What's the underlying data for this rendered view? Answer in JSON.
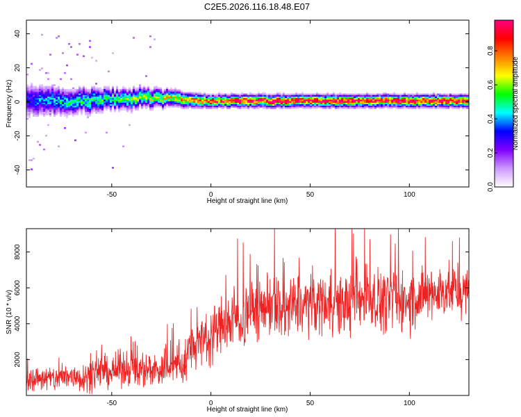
{
  "title": "C2E5.2026.116.18.48.E07",
  "colorbar": {
    "label": "Normalized spectral amplitude",
    "ticks": [
      {
        "value": 0.0,
        "label": "0.0"
      },
      {
        "value": 0.2,
        "label": "0.2"
      },
      {
        "value": 0.4,
        "label": "0.4"
      },
      {
        "value": 0.6,
        "label": "0.6"
      },
      {
        "value": 0.8,
        "label": "0.8"
      }
    ],
    "range": [
      0,
      0.98
    ],
    "colors": [
      "#ffffff",
      "#cc99ff",
      "#8000ff",
      "#0000ff",
      "#00ffff",
      "#00ff00",
      "#ffff00",
      "#ff8000",
      "#ff0000",
      "#ff0080"
    ]
  },
  "chart_data": [
    {
      "type": "heatmap",
      "title": "C2E5.2026.116.18.48.E07",
      "xlabel": "Height of straight line (km)",
      "ylabel": "Frequency (Hz)",
      "xlim": [
        -93,
        130
      ],
      "ylim": [
        -50,
        48
      ],
      "xticks": [
        {
          "value": -50,
          "label": "-50"
        },
        {
          "value": 0,
          "label": "0"
        },
        {
          "value": 50,
          "label": "50"
        },
        {
          "value": 100,
          "label": "100"
        }
      ],
      "yticks": [
        {
          "value": -40,
          "label": "-40"
        },
        {
          "value": -20,
          "label": "-20"
        },
        {
          "value": 0,
          "label": "0"
        },
        {
          "value": 20,
          "label": "20"
        },
        {
          "value": 40,
          "label": "40"
        }
      ],
      "band": {
        "x": [
          -93,
          -80,
          -70,
          -60,
          -50,
          -40,
          -30,
          -20,
          -10,
          0,
          10,
          20,
          30,
          40,
          50,
          60,
          70,
          80,
          90,
          100,
          110,
          120,
          130
        ],
        "center_freq": [
          0.5,
          0.5,
          0.5,
          1.0,
          1.5,
          2.0,
          2.5,
          1.5,
          1.0,
          0.5,
          0.5,
          0.5,
          0.5,
          0.5,
          0.5,
          0.5,
          0.5,
          0.5,
          0.5,
          0.5,
          0.5,
          0.5,
          0.5
        ],
        "half_width": [
          8,
          7,
          6,
          6,
          5,
          5,
          4.5,
          4,
          3.5,
          3,
          3,
          3,
          3,
          3,
          3,
          3,
          3,
          3,
          3,
          3,
          3,
          3,
          3
        ],
        "peak_amplitude": [
          0.3,
          0.4,
          0.45,
          0.5,
          0.5,
          0.55,
          0.6,
          0.65,
          0.75,
          0.85,
          0.9,
          0.92,
          0.95,
          0.95,
          0.95,
          0.95,
          0.95,
          0.95,
          0.95,
          0.95,
          0.95,
          0.95,
          0.95
        ]
      }
    },
    {
      "type": "line",
      "xlabel": "Height of straight line (km)",
      "ylabel": "SNR (10 * v/v)",
      "xlim": [
        -93,
        130
      ],
      "ylim": [
        0,
        9300
      ],
      "xticks": [
        {
          "value": -50,
          "label": "-50"
        },
        {
          "value": 0,
          "label": "0"
        },
        {
          "value": 50,
          "label": "50"
        },
        {
          "value": 100,
          "label": "100"
        }
      ],
      "yticks": [
        {
          "value": 2000,
          "label": "2000"
        },
        {
          "value": 4000,
          "label": "4000"
        },
        {
          "value": 6000,
          "label": "6000"
        },
        {
          "value": 8000,
          "label": "8000"
        }
      ],
      "color": "#ee2222",
      "x": [
        -93,
        -90,
        -85,
        -80,
        -75,
        -70,
        -65,
        -60,
        -55,
        -50,
        -45,
        -40,
        -35,
        -30,
        -25,
        -20,
        -15,
        -12,
        -10,
        -5,
        0,
        5,
        10,
        15,
        20,
        25,
        30,
        35,
        40,
        45,
        50,
        55,
        60,
        65,
        70,
        75,
        80,
        85,
        90,
        95,
        100,
        105,
        110,
        115,
        120,
        125,
        130
      ],
      "y": [
        700,
        900,
        1000,
        900,
        1000,
        1100,
        1000,
        1200,
        1400,
        1300,
        1500,
        1600,
        1400,
        1500,
        1400,
        1700,
        1500,
        2200,
        2800,
        3000,
        3400,
        3900,
        4200,
        4300,
        4600,
        4900,
        5200,
        4700,
        4800,
        5000,
        5100,
        5200,
        5300,
        5000,
        5200,
        5400,
        5600,
        5300,
        5300,
        5400,
        5200,
        5500,
        5600,
        5800,
        5900,
        5700,
        5800
      ],
      "spread": [
        600,
        700,
        800,
        800,
        900,
        900,
        900,
        1000,
        1000,
        1000,
        1100,
        1100,
        1100,
        1100,
        1100,
        1200,
        1300,
        1400,
        1500,
        1600,
        1700,
        1800,
        1900,
        1900,
        2000,
        2000,
        2000,
        2000,
        2000,
        2000,
        1900,
        1900,
        1900,
        1900,
        1900,
        1900,
        1900,
        1900,
        1900,
        1900,
        1900,
        1800,
        1700,
        1700,
        1600,
        1500,
        1400
      ]
    }
  ]
}
